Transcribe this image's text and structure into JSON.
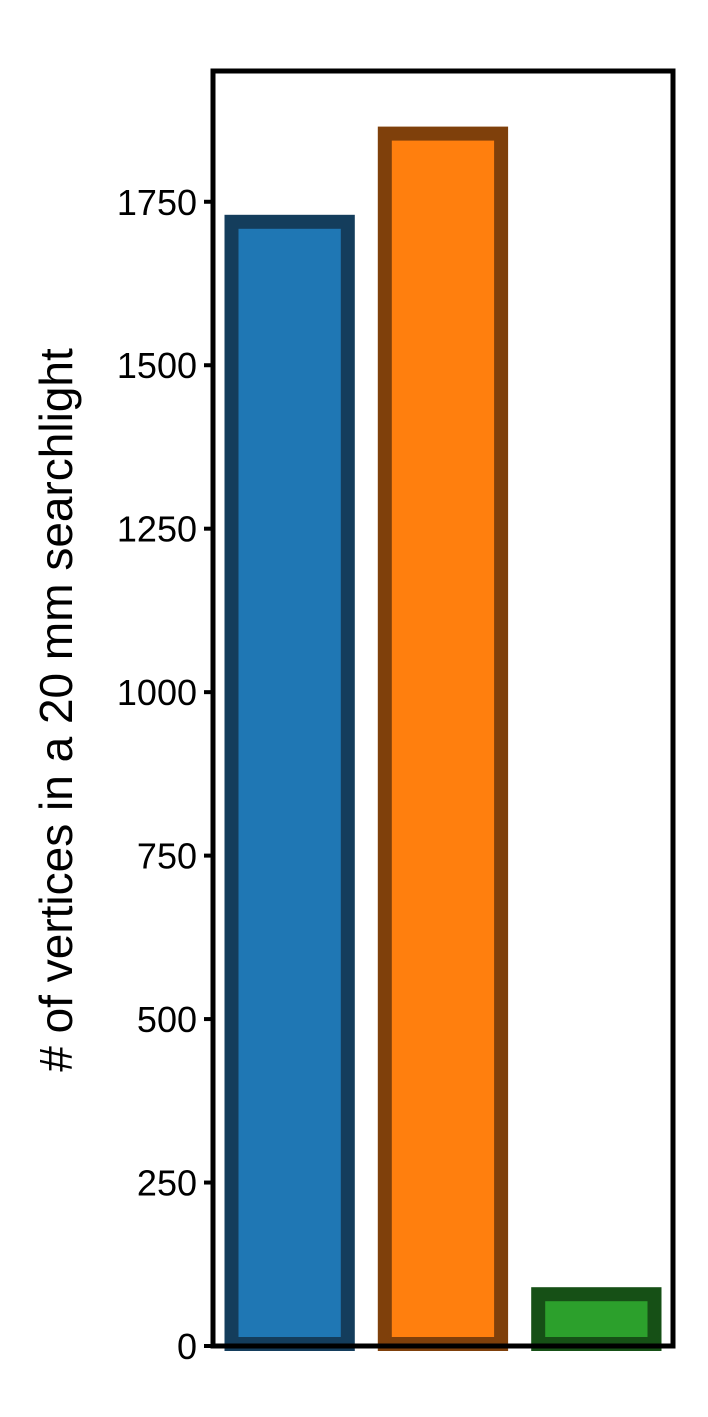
{
  "chart_data": {
    "type": "bar",
    "title": "",
    "xlabel": "",
    "ylabel": "# of vertices in a 20 mm searchlight",
    "categories": [
      "",
      "",
      ""
    ],
    "values": [
      1730,
      1865,
      90
    ],
    "ylim": [
      0,
      1950
    ],
    "yticks": [
      0,
      250,
      500,
      750,
      1000,
      1250,
      1500,
      1750
    ],
    "ytick_labels": [
      "0",
      "250",
      "500",
      "750",
      "1000",
      "1250",
      "1500",
      "1750"
    ],
    "grid": false,
    "legend": "none",
    "bar_fill_colors": [
      "#1f77b4",
      "#ff7f0e",
      "#2ca02c"
    ],
    "bar_edge_colors": [
      "#143d5c",
      "#7f400b",
      "#165016"
    ]
  }
}
